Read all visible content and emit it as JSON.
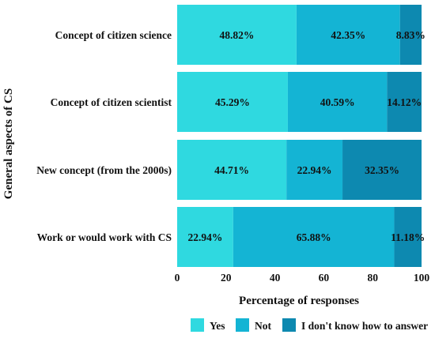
{
  "chart_data": {
    "type": "bar",
    "orientation": "horizontal",
    "stacked": true,
    "categories": [
      "Concept of citizen science",
      "Concept of citizen scientist",
      "New concept (from the 2000s)",
      "Work or would work with CS"
    ],
    "series": [
      {
        "name": "Yes",
        "color": "#2fd9e0",
        "values": [
          48.82,
          45.29,
          44.71,
          22.94
        ]
      },
      {
        "name": "Not",
        "color": "#14b4d4",
        "values": [
          42.35,
          40.59,
          22.94,
          65.88
        ]
      },
      {
        "name": "I don't know how to answer",
        "color": "#0d89b0",
        "values": [
          8.83,
          14.12,
          32.35,
          11.18
        ]
      }
    ],
    "data_labels": [
      [
        "48.82%",
        "45.29%",
        "44.71%",
        "22.94%"
      ],
      [
        "42.35%",
        "40.59%",
        "22.94%",
        "65.88%"
      ],
      [
        "8.83%",
        "14.12%",
        "32.35%",
        "11.18%"
      ]
    ],
    "xlabel": "Percentage of responses",
    "ylabel": "General aspects of CS",
    "xlim": [
      0,
      100
    ],
    "xticks": [
      0,
      20,
      40,
      60,
      80,
      100
    ],
    "grid": false,
    "legend_position": "bottom"
  }
}
